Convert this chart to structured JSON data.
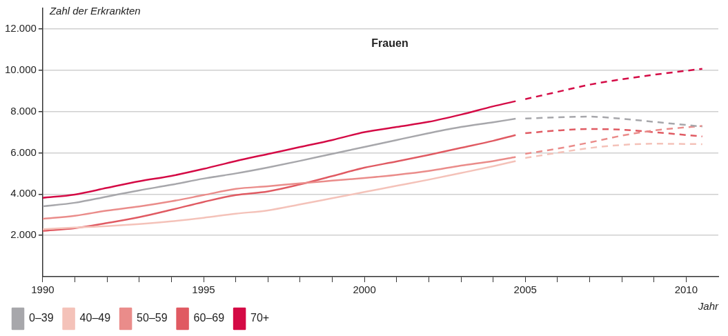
{
  "chart_data": {
    "type": "line",
    "title": "Frauen",
    "xlabel": "Jahr",
    "ylabel": "Zahl der Erkrankten",
    "xlim": [
      1990,
      2011
    ],
    "ylim": [
      0,
      13000
    ],
    "xticks": [
      1990,
      {
        "value": 1991,
        "label": null
      },
      {
        "value": 1992,
        "label": null
      },
      {
        "value": 1993,
        "label": null
      },
      {
        "value": 1994,
        "label": null
      },
      1995,
      {
        "value": 1996,
        "label": null
      },
      {
        "value": 1997,
        "label": null
      },
      {
        "value": 1998,
        "label": null
      },
      {
        "value": 1999,
        "label": null
      },
      2000,
      {
        "value": 2001,
        "label": null
      },
      {
        "value": 2002,
        "label": null
      },
      {
        "value": 2003,
        "label": null
      },
      {
        "value": 2004,
        "label": null
      },
      2005,
      {
        "value": 2006,
        "label": null
      },
      {
        "value": 2007,
        "label": null
      },
      {
        "value": 2008,
        "label": null
      },
      {
        "value": 2009,
        "label": null
      },
      2010
    ],
    "yticks": [
      {
        "value": 2000,
        "label": "2.000"
      },
      {
        "value": 4000,
        "label": "4.000"
      },
      {
        "value": 6000,
        "label": "6.000"
      },
      {
        "value": 8000,
        "label": "8.000"
      },
      {
        "value": 10000,
        "label": "10.000"
      },
      {
        "value": 12000,
        "label": "12.000"
      }
    ],
    "grid": "y",
    "legend": "bottom",
    "marker": "none",
    "x": [
      1990,
      1991,
      1992,
      1993,
      1994,
      1995,
      1996,
      1997,
      1998,
      1999,
      2000,
      2001,
      2002,
      2003,
      2004,
      2004.7
    ],
    "series": [
      {
        "name": "0–39",
        "color": "#a7a7ab",
        "line_style": "solid",
        "values": [
          3410,
          3580,
          3880,
          4180,
          4450,
          4750,
          5000,
          5290,
          5610,
          5950,
          6280,
          6620,
          6950,
          7250,
          7480,
          7650
        ]
      },
      {
        "name": "40–49",
        "color": "#f4c2b9",
        "line_style": "solid",
        "values": [
          2300,
          2380,
          2450,
          2550,
          2680,
          2850,
          3050,
          3210,
          3500,
          3800,
          4100,
          4400,
          4700,
          5020,
          5350,
          5600
        ]
      },
      {
        "name": "50–59",
        "color": "#ea8c8a",
        "line_style": "solid",
        "values": [
          2800,
          2950,
          3200,
          3400,
          3650,
          3950,
          4250,
          4380,
          4520,
          4650,
          4780,
          4930,
          5120,
          5380,
          5600,
          5800
        ]
      },
      {
        "name": "60–69",
        "color": "#e05a62",
        "line_style": "solid",
        "values": [
          2220,
          2350,
          2600,
          2880,
          3240,
          3620,
          3950,
          4130,
          4470,
          4870,
          5280,
          5580,
          5900,
          6240,
          6580,
          6860
        ]
      },
      {
        "name": "70+",
        "color": "#d40a45",
        "line_style": "solid",
        "values": [
          3820,
          3980,
          4300,
          4620,
          4880,
          5220,
          5600,
          5940,
          6280,
          6620,
          7000,
          7250,
          7500,
          7850,
          8250,
          8500
        ]
      },
      {
        "color": "#a7a7ab",
        "line_style": "dashed",
        "x": [
          2005,
          2006,
          2007,
          2008,
          2009,
          2010.5
        ],
        "values": [
          7660,
          7720,
          7750,
          7650,
          7500,
          7270
        ]
      },
      {
        "color": "#f4c2b9",
        "line_style": "dashed",
        "x": [
          2005,
          2006,
          2007,
          2008,
          2009,
          2010.5
        ],
        "values": [
          5750,
          6000,
          6230,
          6380,
          6440,
          6420
        ]
      },
      {
        "color": "#ea8c8a",
        "line_style": "dashed",
        "x": [
          2005,
          2006,
          2007,
          2008,
          2009,
          2010.5
        ],
        "values": [
          5950,
          6200,
          6500,
          6830,
          7080,
          7300
        ]
      },
      {
        "color": "#e05a62",
        "line_style": "dashed",
        "x": [
          2005,
          2006,
          2007,
          2008,
          2009,
          2010.5
        ],
        "values": [
          6950,
          7080,
          7150,
          7120,
          7000,
          6790
        ]
      },
      {
        "color": "#d40a45",
        "line_style": "dashed",
        "x": [
          2005,
          2006,
          2007,
          2008,
          2009,
          2010.5
        ],
        "values": [
          8600,
          8950,
          9300,
          9560,
          9780,
          10070
        ]
      }
    ]
  }
}
